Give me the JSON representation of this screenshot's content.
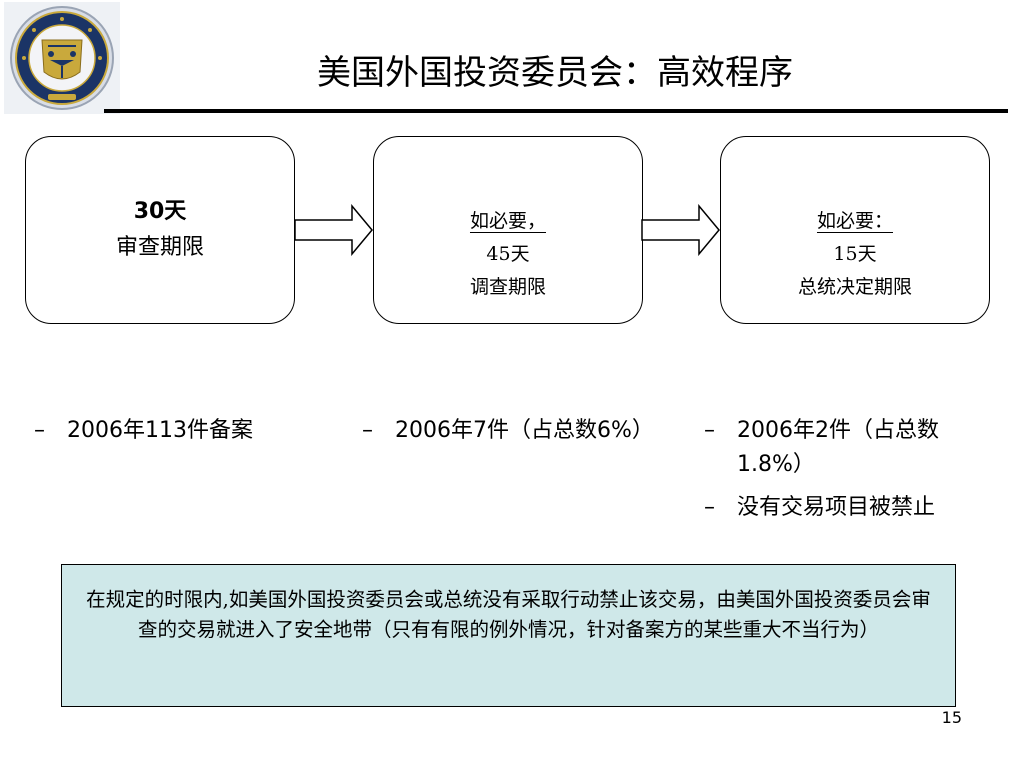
{
  "header": {
    "title": "美国外国投资委员会：高效程序"
  },
  "colors": {
    "note_background": "#cfe8e9",
    "seal_blue": "#1b3466",
    "seal_gold": "#c9a93c"
  },
  "icons": {
    "seal": "treasury-seal-icon",
    "flow_arrow": "right-arrow-icon"
  },
  "stages": [
    {
      "lines": [
        "30天",
        "审查期限"
      ]
    },
    {
      "lines": [
        "如必要，",
        "45天",
        "调查期限"
      ]
    },
    {
      "lines": [
        "如必要：",
        "15天",
        "总统决定期限"
      ]
    }
  ],
  "stats": [
    {
      "items": [
        "2006年113件备案"
      ]
    },
    {
      "items": [
        "2006年7件（占总数6%）"
      ]
    },
    {
      "items": [
        "2006年2件（占总数1.8%）",
        "没有交易项目被禁止"
      ]
    }
  ],
  "bullet_dash": "–",
  "note": {
    "text": "在规定的时限内,如美国外国投资委员会或总统没有采取行动禁止该交易，由美国外国投资委员会审查的交易就进入了安全地带（只有有限的例外情况，针对备案方的某些重大不当行为）"
  },
  "footer": {
    "page_number": "15"
  }
}
